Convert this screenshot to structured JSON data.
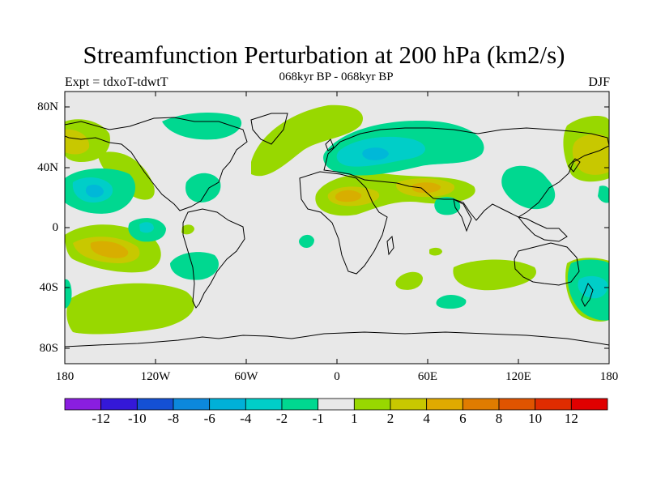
{
  "title": "Streamfunction Perturbation at 200 hPa (km2/s)",
  "subtitle": "068kyr BP - 068kyr BP",
  "experiment": "Expt = tdxoT-tdwtT",
  "season": "DJF",
  "lat_labels": [
    "80N",
    "40N",
    "0",
    "40S",
    "80S"
  ],
  "lon_labels": [
    "180",
    "120W",
    "60W",
    "0",
    "60E",
    "120E",
    "180"
  ],
  "colorbar": {
    "labels": [
      "-12",
      "-10",
      "-8",
      "-6",
      "-4",
      "-2",
      "-1",
      "1",
      "2",
      "4",
      "6",
      "8",
      "10",
      "12"
    ],
    "colors": [
      "#8a1ee0",
      "#3418d8",
      "#1450d4",
      "#0c88dc",
      "#00b0d8",
      "#00cec8",
      "#00d890",
      "#e8e8e8",
      "#98d800",
      "#c8c800",
      "#e0aa00",
      "#e07c00",
      "#e05400",
      "#e02c00",
      "#e00000"
    ]
  },
  "map_colors": {
    "background": "#e8e8e8",
    "pos1": "#98d800",
    "pos2": "#c8c800",
    "pos3": "#d8ae00",
    "neg1": "#00d890",
    "neg2": "#00cec8",
    "neg3": "#00b8d8",
    "coast": "#000000"
  }
}
